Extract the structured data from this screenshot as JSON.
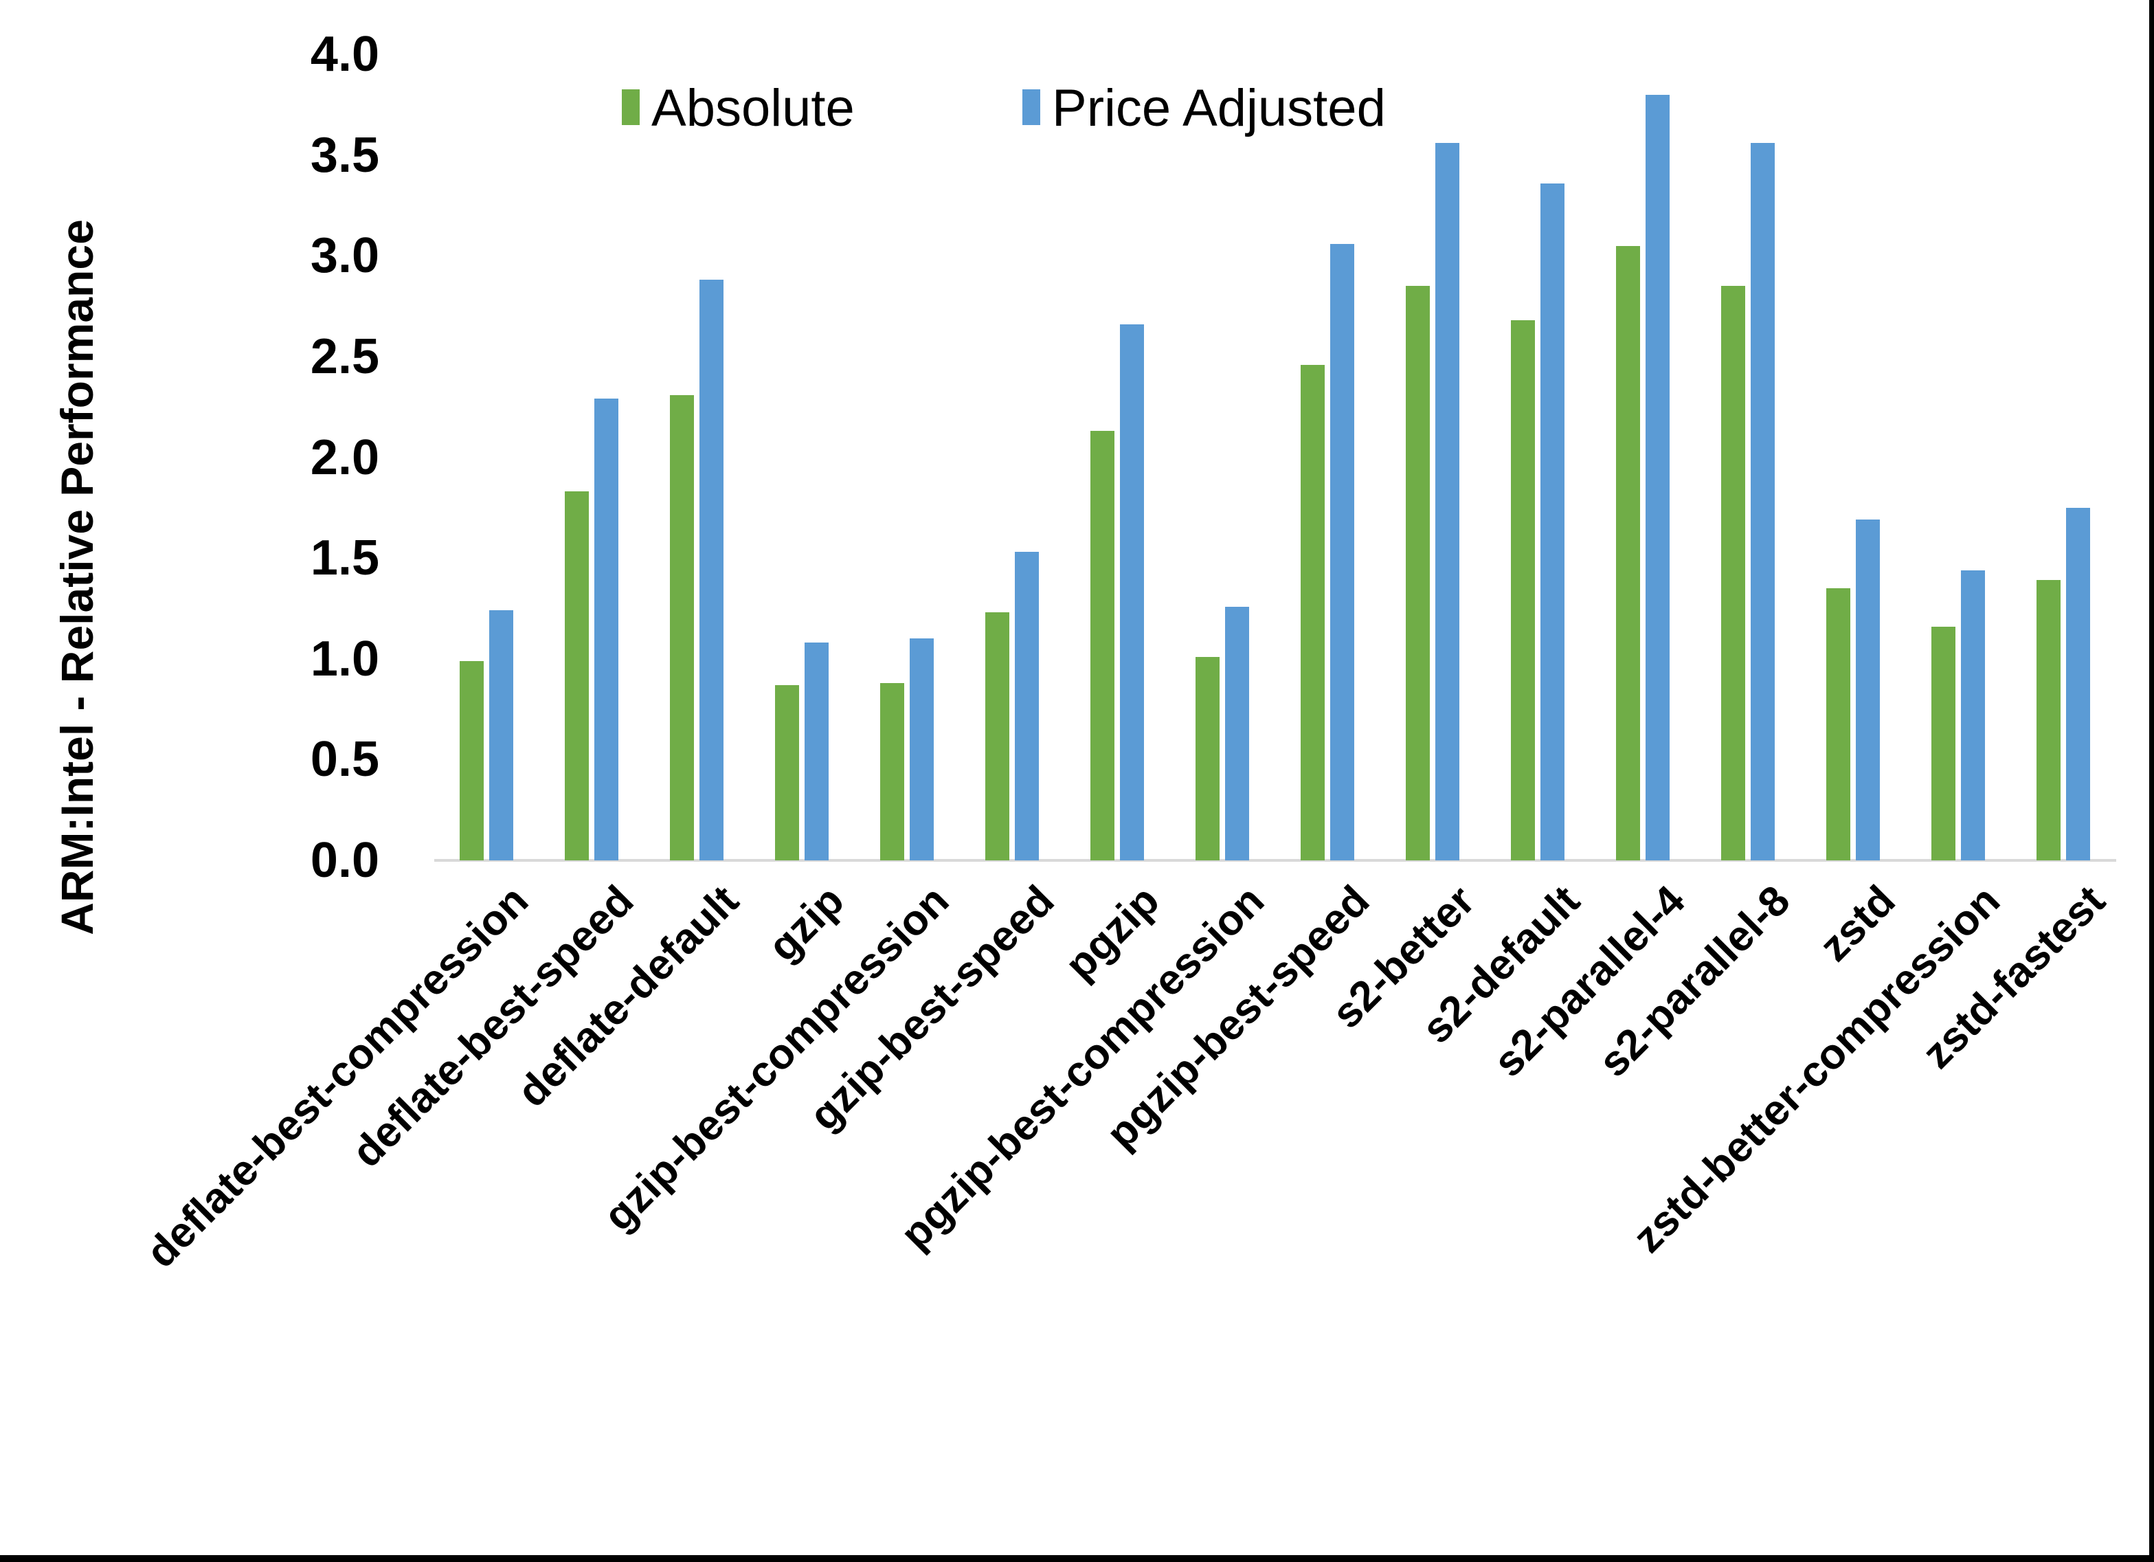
{
  "chart_data": {
    "type": "bar",
    "title": "",
    "ylabel": "ARM:Intel - Relative Performance",
    "xlabel": "",
    "ylim": [
      0.0,
      4.0
    ],
    "ytick_step": 0.5,
    "ytick_labels": [
      "0.0",
      "0.5",
      "1.0",
      "1.5",
      "2.0",
      "2.5",
      "3.0",
      "3.5",
      "4.0"
    ],
    "grid": false,
    "legend_position": "top",
    "axis_line_color": "#D9D9D9",
    "categories": [
      "deflate-best-compression",
      "deflate-best-speed",
      "deflate-default",
      "gzip",
      "gzip-best-compression",
      "gzip-best-speed",
      "pgzip",
      "pgzip-best-compression",
      "pgzip-best-speed",
      "s2-better",
      "s2-default",
      "s2-parallel-4",
      "s2-parallel-8",
      "zstd",
      "zstd-better-compression",
      "zstd-fastest"
    ],
    "series": [
      {
        "name": "Absolute",
        "color": "#70AD47",
        "values": [
          0.99,
          1.83,
          2.31,
          0.87,
          0.88,
          1.23,
          2.13,
          1.01,
          2.46,
          2.85,
          2.68,
          3.05,
          2.85,
          1.35,
          1.16,
          1.39
        ]
      },
      {
        "name": "Price Adjusted",
        "color": "#5B9BD5",
        "values": [
          1.24,
          2.29,
          2.88,
          1.08,
          1.1,
          1.53,
          2.66,
          1.26,
          3.06,
          3.56,
          3.36,
          3.8,
          3.56,
          1.69,
          1.44,
          1.75
        ]
      }
    ]
  },
  "frame": {
    "border_color": "#000000",
    "background": "#ffffff"
  }
}
